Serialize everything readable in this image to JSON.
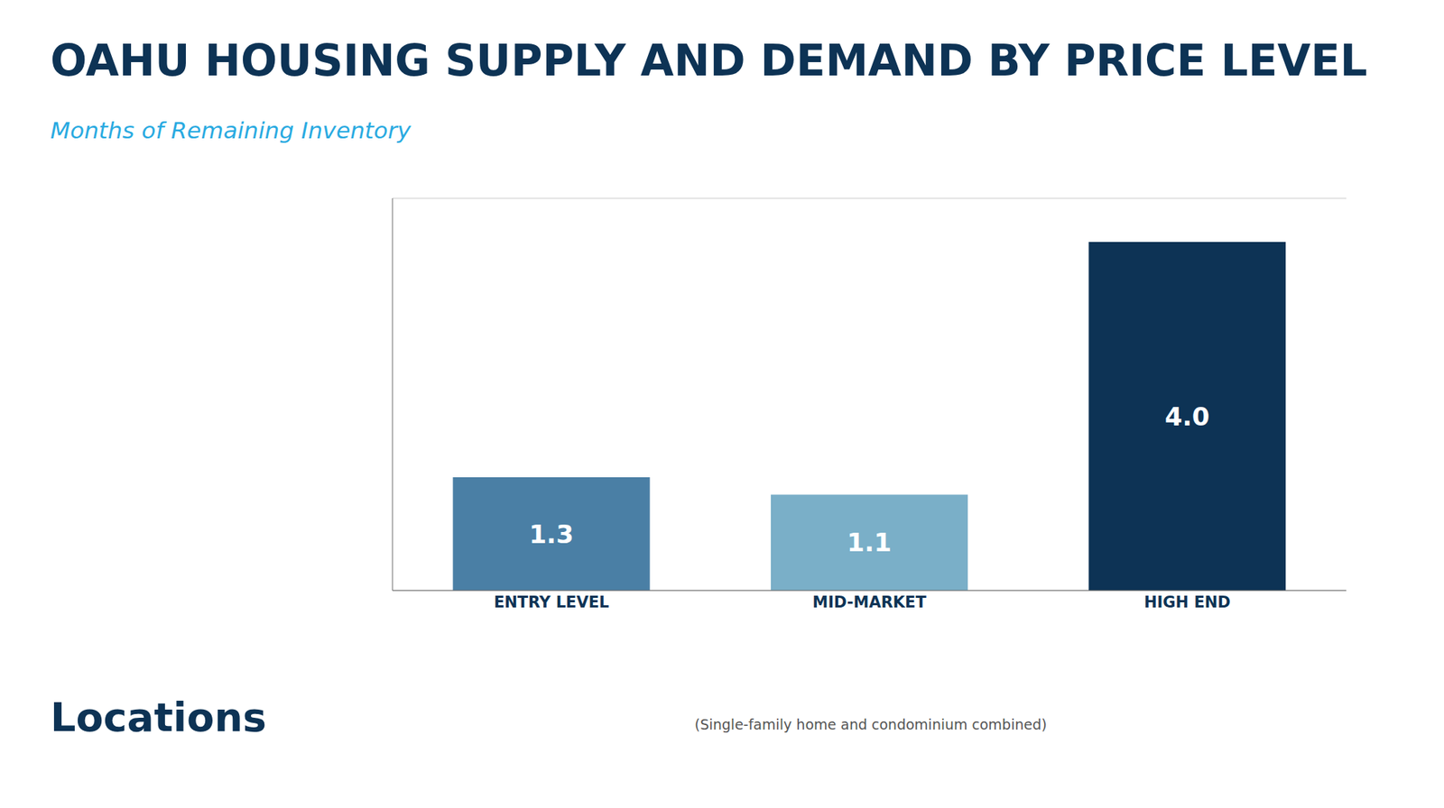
{
  "chart_data": {
    "type": "bar",
    "title": "OAHU HOUSING SUPPLY AND DEMAND BY PRICE LEVEL",
    "subtitle": "Months of Remaining Inventory",
    "categories": [
      "ENTRY LEVEL",
      "MID-MARKET",
      "HIGH END"
    ],
    "values": [
      1.3,
      1.1,
      4.0
    ],
    "value_labels": [
      "1.3",
      "1.1",
      "4.0"
    ],
    "colors": [
      "#4a7fa5",
      "#7aafc8",
      "#0d3355"
    ],
    "ylim": [
      0,
      4.5
    ],
    "yticks": [
      0,
      1,
      2,
      3,
      4
    ],
    "grid": true,
    "data_labels": true,
    "tick_labels": "x",
    "annotations": [
      "(Single-family home and condominium combined)",
      "Locations"
    ]
  }
}
